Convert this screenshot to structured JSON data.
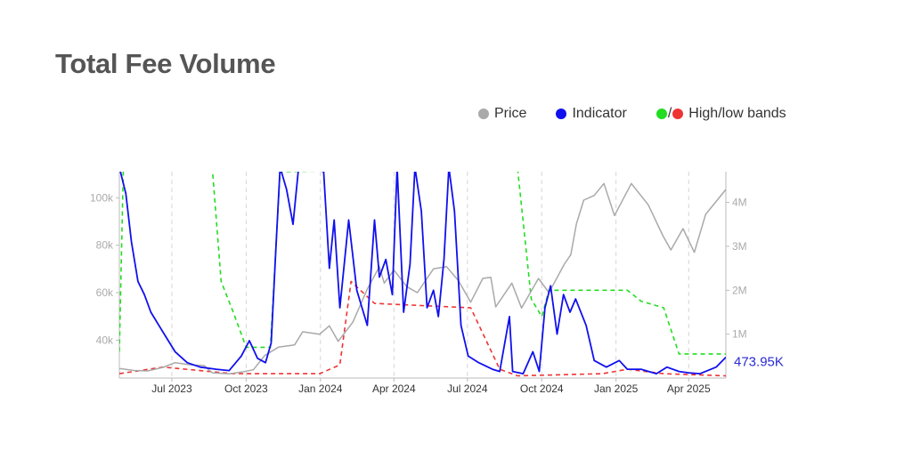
{
  "page": {
    "title": "Total Fee Volume"
  },
  "legend": {
    "price": {
      "label": "Price",
      "color": "#a9a9a9"
    },
    "indicator": {
      "label": "Indicator",
      "color": "#1010ee"
    },
    "bands": {
      "label": "High/low bands",
      "high_color": "#22dd22",
      "low_color": "#ee3333",
      "separator": "/"
    }
  },
  "chart_data": {
    "type": "line",
    "title": "Total Fee Volume",
    "x_range": [
      "2023-04-27",
      "2025-05-17"
    ],
    "x_ticks": [
      {
        "date": "2023-07-01",
        "label": "Jul 2023"
      },
      {
        "date": "2023-10-01",
        "label": "Oct 2023"
      },
      {
        "date": "2024-01-01",
        "label": "Jan 2024"
      },
      {
        "date": "2024-04-01",
        "label": "Apr 2024"
      },
      {
        "date": "2024-07-01",
        "label": "Jul 2024"
      },
      {
        "date": "2024-10-01",
        "label": "Oct 2024"
      },
      {
        "date": "2025-01-01",
        "label": "Jan 2025"
      },
      {
        "date": "2025-04-01",
        "label": "Apr 2025"
      }
    ],
    "y_left": {
      "range": [
        24000,
        111000
      ],
      "ticks": [
        40000,
        60000,
        80000,
        100000
      ],
      "tick_labels": [
        "40k",
        "60k",
        "80k",
        "100k"
      ]
    },
    "y_right": {
      "range": [
        0,
        4700000
      ],
      "ticks": [
        1000000,
        2000000,
        3000000,
        4000000
      ],
      "tick_labels": [
        "1M",
        "2M",
        "3M",
        "4M"
      ]
    },
    "grid": "vertical dashed at x ticks",
    "last_value_label": "473.95K",
    "series": [
      {
        "name": "Price",
        "axis": "left",
        "style": "solid",
        "color": "#a9a9a9",
        "points": [
          [
            "2023-04-27",
            28000
          ],
          [
            "2023-05-15",
            27200
          ],
          [
            "2023-06-01",
            27000
          ],
          [
            "2023-06-20",
            28500
          ],
          [
            "2023-07-05",
            30500
          ],
          [
            "2023-07-25",
            29500
          ],
          [
            "2023-08-10",
            29300
          ],
          [
            "2023-08-20",
            26200
          ],
          [
            "2023-09-10",
            25800
          ],
          [
            "2023-09-25",
            26500
          ],
          [
            "2023-10-10",
            27500
          ],
          [
            "2023-10-24",
            33500
          ],
          [
            "2023-11-10",
            37000
          ],
          [
            "2023-11-30",
            38000
          ],
          [
            "2023-12-10",
            43500
          ],
          [
            "2023-12-31",
            42500
          ],
          [
            "2024-01-12",
            46000
          ],
          [
            "2024-01-23",
            39500
          ],
          [
            "2024-02-10",
            47500
          ],
          [
            "2024-02-28",
            61500
          ],
          [
            "2024-03-14",
            71000
          ],
          [
            "2024-03-20",
            64000
          ],
          [
            "2024-04-01",
            69500
          ],
          [
            "2024-04-17",
            62500
          ],
          [
            "2024-04-30",
            60000
          ],
          [
            "2024-05-20",
            70000
          ],
          [
            "2024-06-05",
            71000
          ],
          [
            "2024-06-20",
            65000
          ],
          [
            "2024-07-05",
            56000
          ],
          [
            "2024-07-20",
            66000
          ],
          [
            "2024-07-30",
            66500
          ],
          [
            "2024-08-05",
            54000
          ],
          [
            "2024-08-25",
            64000
          ],
          [
            "2024-09-06",
            53500
          ],
          [
            "2024-09-27",
            66000
          ],
          [
            "2024-10-10",
            60000
          ],
          [
            "2024-10-29",
            72000
          ],
          [
            "2024-11-06",
            76000
          ],
          [
            "2024-11-13",
            89000
          ],
          [
            "2024-11-22",
            99000
          ],
          [
            "2024-12-05",
            101000
          ],
          [
            "2024-12-17",
            106000
          ],
          [
            "2024-12-30",
            92500
          ],
          [
            "2025-01-20",
            106000
          ],
          [
            "2025-02-10",
            97000
          ],
          [
            "2025-02-28",
            84000
          ],
          [
            "2025-03-10",
            78000
          ],
          [
            "2025-03-25",
            87000
          ],
          [
            "2025-04-08",
            77000
          ],
          [
            "2025-04-22",
            93000
          ],
          [
            "2025-05-17",
            103500
          ]
        ]
      },
      {
        "name": "Indicator",
        "axis": "right",
        "style": "solid",
        "color": "#1010ee",
        "points": [
          [
            "2023-04-27",
            4800000
          ],
          [
            "2023-05-05",
            4200000
          ],
          [
            "2023-05-12",
            3100000
          ],
          [
            "2023-05-20",
            2200000
          ],
          [
            "2023-05-28",
            1900000
          ],
          [
            "2023-06-05",
            1500000
          ],
          [
            "2023-06-15",
            1200000
          ],
          [
            "2023-06-25",
            900000
          ],
          [
            "2023-07-05",
            600000
          ],
          [
            "2023-07-20",
            350000
          ],
          [
            "2023-08-05",
            250000
          ],
          [
            "2023-08-25",
            200000
          ],
          [
            "2023-09-10",
            170000
          ],
          [
            "2023-09-25",
            500000
          ],
          [
            "2023-10-05",
            850000
          ],
          [
            "2023-10-15",
            450000
          ],
          [
            "2023-10-25",
            350000
          ],
          [
            "2023-11-01",
            800000
          ],
          [
            "2023-11-07",
            3000000
          ],
          [
            "2023-11-12",
            4800000
          ],
          [
            "2023-11-20",
            4300000
          ],
          [
            "2023-11-28",
            3500000
          ],
          [
            "2023-12-05",
            4800000
          ],
          [
            "2023-12-20",
            4800000
          ],
          [
            "2024-01-05",
            4700000
          ],
          [
            "2024-01-12",
            2500000
          ],
          [
            "2024-01-18",
            3600000
          ],
          [
            "2024-01-25",
            1600000
          ],
          [
            "2024-02-05",
            3600000
          ],
          [
            "2024-02-15",
            2000000
          ],
          [
            "2024-02-28",
            1200000
          ],
          [
            "2024-03-08",
            3600000
          ],
          [
            "2024-03-14",
            2300000
          ],
          [
            "2024-03-22",
            2700000
          ],
          [
            "2024-03-30",
            1900000
          ],
          [
            "2024-04-05",
            4800000
          ],
          [
            "2024-04-13",
            1500000
          ],
          [
            "2024-04-21",
            2600000
          ],
          [
            "2024-04-27",
            4800000
          ],
          [
            "2024-05-05",
            3800000
          ],
          [
            "2024-05-12",
            1600000
          ],
          [
            "2024-05-20",
            2000000
          ],
          [
            "2024-05-26",
            1400000
          ],
          [
            "2024-06-02",
            2700000
          ],
          [
            "2024-06-08",
            4800000
          ],
          [
            "2024-06-15",
            3800000
          ],
          [
            "2024-06-23",
            1200000
          ],
          [
            "2024-07-02",
            500000
          ],
          [
            "2024-07-15",
            350000
          ],
          [
            "2024-08-01",
            200000
          ],
          [
            "2024-08-10",
            150000
          ],
          [
            "2024-08-22",
            1400000
          ],
          [
            "2024-08-26",
            150000
          ],
          [
            "2024-09-08",
            100000
          ],
          [
            "2024-09-20",
            600000
          ],
          [
            "2024-09-28",
            150000
          ],
          [
            "2024-10-05",
            1600000
          ],
          [
            "2024-10-12",
            2100000
          ],
          [
            "2024-10-20",
            1000000
          ],
          [
            "2024-10-28",
            1900000
          ],
          [
            "2024-11-05",
            1500000
          ],
          [
            "2024-11-12",
            1800000
          ],
          [
            "2024-11-25",
            1200000
          ],
          [
            "2024-12-05",
            400000
          ],
          [
            "2024-12-20",
            250000
          ],
          [
            "2025-01-05",
            400000
          ],
          [
            "2025-01-15",
            200000
          ],
          [
            "2025-02-01",
            200000
          ],
          [
            "2025-02-20",
            100000
          ],
          [
            "2025-03-05",
            250000
          ],
          [
            "2025-03-20",
            150000
          ],
          [
            "2025-04-01",
            120000
          ],
          [
            "2025-04-15",
            100000
          ],
          [
            "2025-05-05",
            250000
          ],
          [
            "2025-05-17",
            474000
          ]
        ]
      },
      {
        "name": "High band",
        "axis": "right",
        "style": "dashed",
        "color": "#22dd22",
        "points": [
          [
            "2023-04-27",
            600000
          ],
          [
            "2023-05-02",
            4800000
          ],
          [
            "2023-08-20",
            4800000
          ],
          [
            "2023-08-31",
            2200000
          ],
          [
            "2023-09-15",
            1500000
          ],
          [
            "2023-10-01",
            700000
          ],
          [
            "2023-10-31",
            700000
          ],
          [
            "2023-11-12",
            4700000
          ],
          [
            "2024-09-01",
            4800000
          ],
          [
            "2024-09-18",
            1800000
          ],
          [
            "2024-10-01",
            1400000
          ],
          [
            "2024-10-10",
            2000000
          ],
          [
            "2025-01-15",
            2000000
          ],
          [
            "2025-02-01",
            1750000
          ],
          [
            "2025-03-01",
            1600000
          ],
          [
            "2025-03-20",
            550000
          ],
          [
            "2025-05-17",
            550000
          ]
        ]
      },
      {
        "name": "Low band",
        "axis": "right",
        "style": "dashed",
        "color": "#ee3333",
        "points": [
          [
            "2023-04-27",
            100000
          ],
          [
            "2023-06-20",
            250000
          ],
          [
            "2023-09-15",
            100000
          ],
          [
            "2023-12-31",
            100000
          ],
          [
            "2024-01-25",
            300000
          ],
          [
            "2024-02-08",
            2200000
          ],
          [
            "2024-03-08",
            1700000
          ],
          [
            "2024-07-05",
            1600000
          ],
          [
            "2024-08-10",
            200000
          ],
          [
            "2024-09-01",
            50000
          ],
          [
            "2024-12-15",
            100000
          ],
          [
            "2025-01-15",
            200000
          ],
          [
            "2025-03-01",
            100000
          ],
          [
            "2025-05-17",
            50000
          ]
        ]
      }
    ]
  }
}
